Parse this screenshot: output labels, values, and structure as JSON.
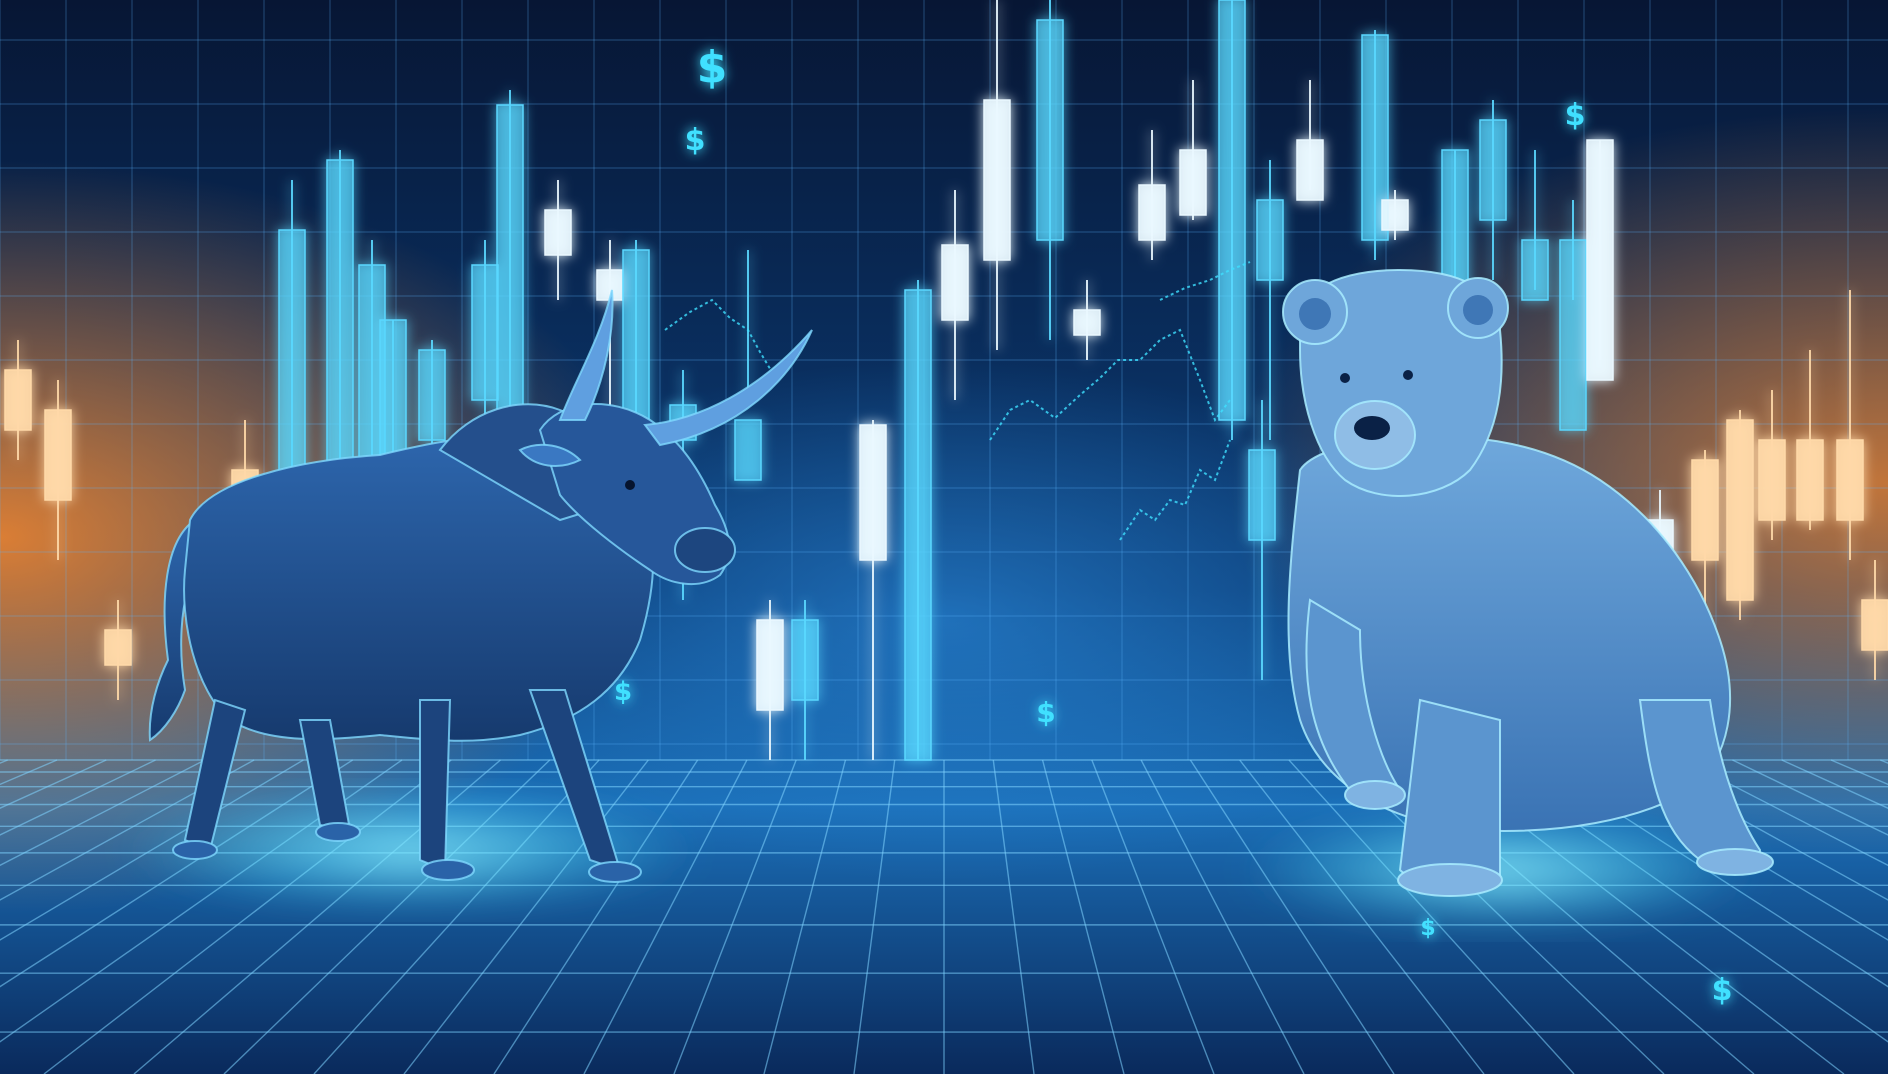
{
  "scene": {
    "dollar_glyph": "$",
    "palette": {
      "background_top": "#071634",
      "background_mid": "#0b3d78",
      "glow_cyan": "#3fe0ff",
      "candle_white": "#eaf8ff",
      "candle_cyan": "#5ad8ff",
      "warm_glow": "#ff8a2a",
      "bull_body": "#1f4f8f",
      "bear_body": "#4a88c8"
    },
    "subjects": [
      "bull",
      "bear"
    ],
    "icons": [
      "bull-figure",
      "bear-figure",
      "candlestick-icon",
      "dollar-icon",
      "line-chart-icon"
    ]
  }
}
